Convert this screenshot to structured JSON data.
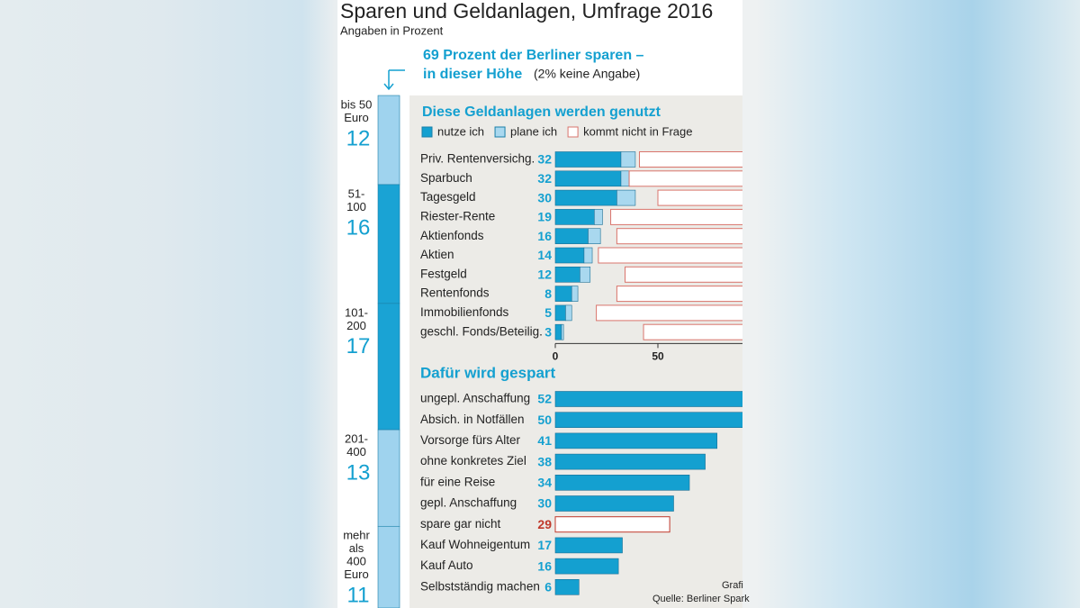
{
  "title": "Sparen und Geldanlagen, Umfrage 2016",
  "subtitle": "Angaben in Prozent",
  "headline": {
    "line1": "69 Prozent der Berliner sparen –",
    "line2": "in dieser Höhe",
    "note": "(2% keine Angabe)"
  },
  "chart_data": [
    {
      "type": "column-stack",
      "categories": [
        [
          "bis 50",
          "Euro"
        ],
        [
          "51-",
          "100"
        ],
        [
          "101-",
          "200"
        ],
        [
          "201-",
          "400"
        ],
        [
          "mehr",
          "als",
          "400",
          "Euro"
        ]
      ],
      "values": [
        12,
        16,
        17,
        13,
        11
      ],
      "colors": [
        "#9fd3ee",
        "#1aa3d4",
        "#1aa3d4",
        "#9fd3ee",
        "#9fd3ee"
      ],
      "ylim": [
        0,
        69
      ]
    },
    {
      "type": "stacked-bar",
      "title": "Diese Geldanlagen werden genutzt",
      "categories": [
        "Priv. Rentenversichg.",
        "Sparbuch",
        "Tagesgeld",
        "Riester-Rente",
        "Aktienfonds",
        "Aktien",
        "Festgeld",
        "Rentenfonds",
        "Immobilienfonds",
        "geschl. Fonds/Beteilig."
      ],
      "series": [
        {
          "name": "nutze ich",
          "color": "#14a0d0",
          "values": [
            32,
            32,
            30,
            19,
            16,
            14,
            12,
            8,
            5,
            3
          ]
        },
        {
          "name": "plane ich",
          "color": "#a9d8ef",
          "values": [
            7,
            4,
            9,
            4,
            6,
            4,
            5,
            3,
            3,
            1
          ]
        },
        {
          "name": "kommt nicht in Frage",
          "color": "#d9746c",
          "style": "outline",
          "align": "right",
          "values": [
            59,
            64,
            50,
            73,
            70,
            79,
            66,
            70,
            80,
            57
          ]
        }
      ],
      "xlim": [
        0,
        100
      ],
      "xticks": [
        0,
        50
      ]
    },
    {
      "type": "bar",
      "title": "Dafür wird gespart",
      "categories": [
        "ungepl. Anschaffung",
        "Absich. in Notfällen",
        "Vorsorge fürs Alter",
        "ohne konkretes Ziel",
        "für eine Reise",
        "gepl. Anschaffung",
        "spare gar nicht",
        "Kauf Wohneigentum",
        "Kauf Auto",
        "Selbstständig machen"
      ],
      "values": [
        52,
        50,
        41,
        38,
        34,
        30,
        29,
        17,
        16,
        6
      ],
      "color": "#14a0d0",
      "highlight_index": 6,
      "highlight_color": "#c0392b",
      "xlim": [
        0,
        60
      ]
    }
  ],
  "footer": {
    "credit": "Grafi",
    "source": "Quelle: Berliner Spark"
  }
}
